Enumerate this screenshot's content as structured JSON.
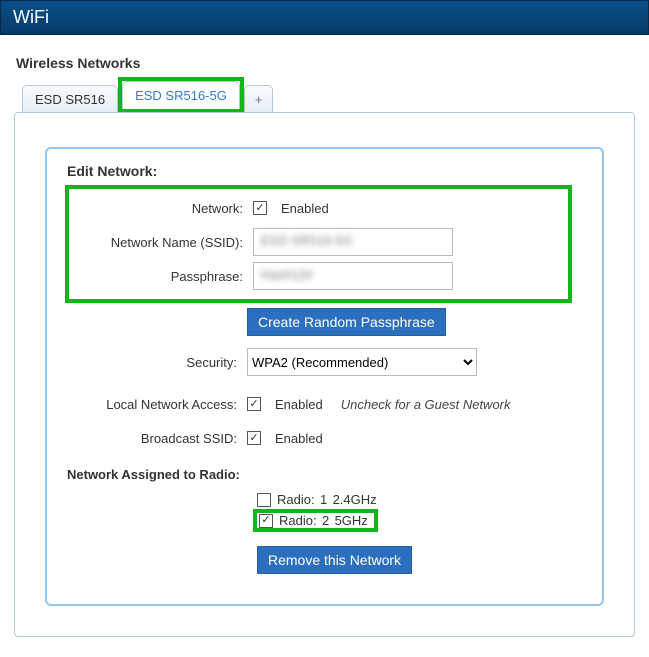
{
  "title": "WiFi",
  "section": "Wireless Networks",
  "tabs": {
    "items": [
      {
        "label": "ESD SR516",
        "active": false
      },
      {
        "label": "ESD SR516-5G",
        "active": true
      }
    ],
    "plus": "+"
  },
  "form": {
    "heading": "Edit Network:",
    "network_label": "Network:",
    "network_enabled_label": "Enabled",
    "network_enabled": true,
    "ssid_label": "Network Name (SSID):",
    "ssid_value": "ESD SR516-5G",
    "pass_label": "Passphrase:",
    "pass_value": "Hash12#",
    "random_btn": "Create Random Passphrase",
    "security_label": "Security:",
    "security_value": "WPA2 (Recommended)",
    "lan_label": "Local Network Access:",
    "lan_enabled_label": "Enabled",
    "lan_enabled": true,
    "lan_hint": "Uncheck for a Guest Network",
    "broadcast_label": "Broadcast SSID:",
    "broadcast_enabled_label": "Enabled",
    "broadcast_enabled": true
  },
  "radio": {
    "heading": "Network Assigned to Radio:",
    "prefix": "Radio:",
    "rows": [
      {
        "num": "1",
        "band": "2.4GHz",
        "checked": false
      },
      {
        "num": "2",
        "band": "5GHz",
        "checked": true
      }
    ],
    "remove_btn": "Remove this Network"
  },
  "colors": {
    "highlight": "#17b31a",
    "accent": "#2d6fbf"
  }
}
